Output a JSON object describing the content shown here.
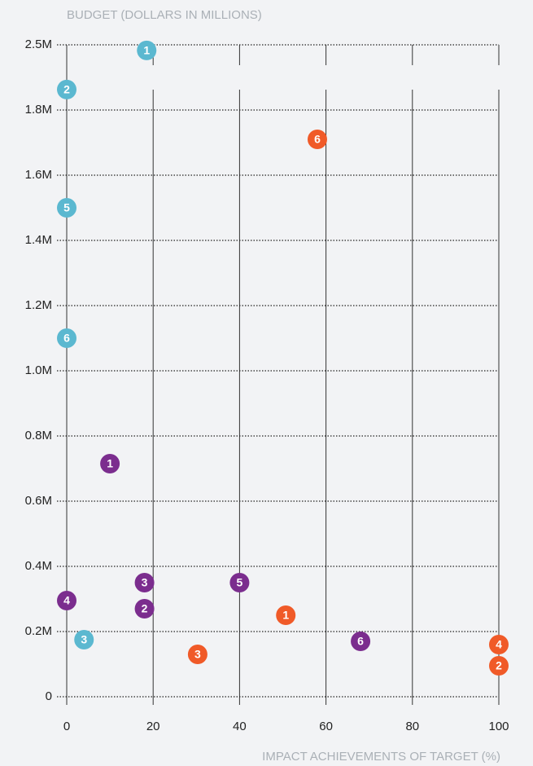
{
  "chart_data": {
    "type": "scatter",
    "y_label": "BUDGET (DOLLARS IN MILLIONS)",
    "x_label": "IMPACT ACHIEVEMENTS OF TARGET (%)",
    "xlim": [
      0,
      100
    ],
    "xticks": [
      0,
      20,
      40,
      60,
      80,
      100
    ],
    "ylim": [
      0,
      2.5
    ],
    "yticks": [
      0,
      {
        "value": 0.2,
        "label": "0.2M"
      },
      {
        "value": 0.4,
        "label": "0.4M"
      },
      {
        "value": 0.6,
        "label": "0.6M"
      },
      {
        "value": 0.8,
        "label": "0.8M"
      },
      {
        "value": 1.0,
        "label": "1.0M"
      },
      {
        "value": 1.2,
        "label": "1.2M"
      },
      {
        "value": 1.4,
        "label": "1.4M"
      },
      {
        "value": 1.6,
        "label": "1.6M"
      },
      {
        "value": 1.8,
        "label": "1.8M"
      },
      {
        "value": 2.5,
        "label": "2.5M"
      }
    ],
    "grid": true,
    "series": [
      {
        "color": "#5bb8d0",
        "point_labels": [
          "1",
          "2",
          "3",
          "5",
          "6"
        ],
        "x": [
          18.5,
          0,
          4,
          0,
          0
        ],
        "values": [
          2.44,
          2.02,
          0.175,
          1.5,
          1.1
        ]
      },
      {
        "color": "#7b2d8e",
        "point_labels": [
          "1",
          "2",
          "3",
          "4",
          "5",
          "6"
        ],
        "x": [
          10,
          18,
          18,
          0,
          40,
          68
        ],
        "values": [
          0.715,
          0.27,
          0.35,
          0.295,
          0.35,
          0.17
        ]
      },
      {
        "color": "#f05a28",
        "point_labels": [
          "1",
          "2",
          "3",
          "4",
          "6"
        ],
        "x": [
          50.7,
          100,
          30.3,
          100,
          58
        ],
        "values": [
          0.25,
          0.095,
          0.13,
          0.16,
          1.71
        ]
      }
    ]
  }
}
